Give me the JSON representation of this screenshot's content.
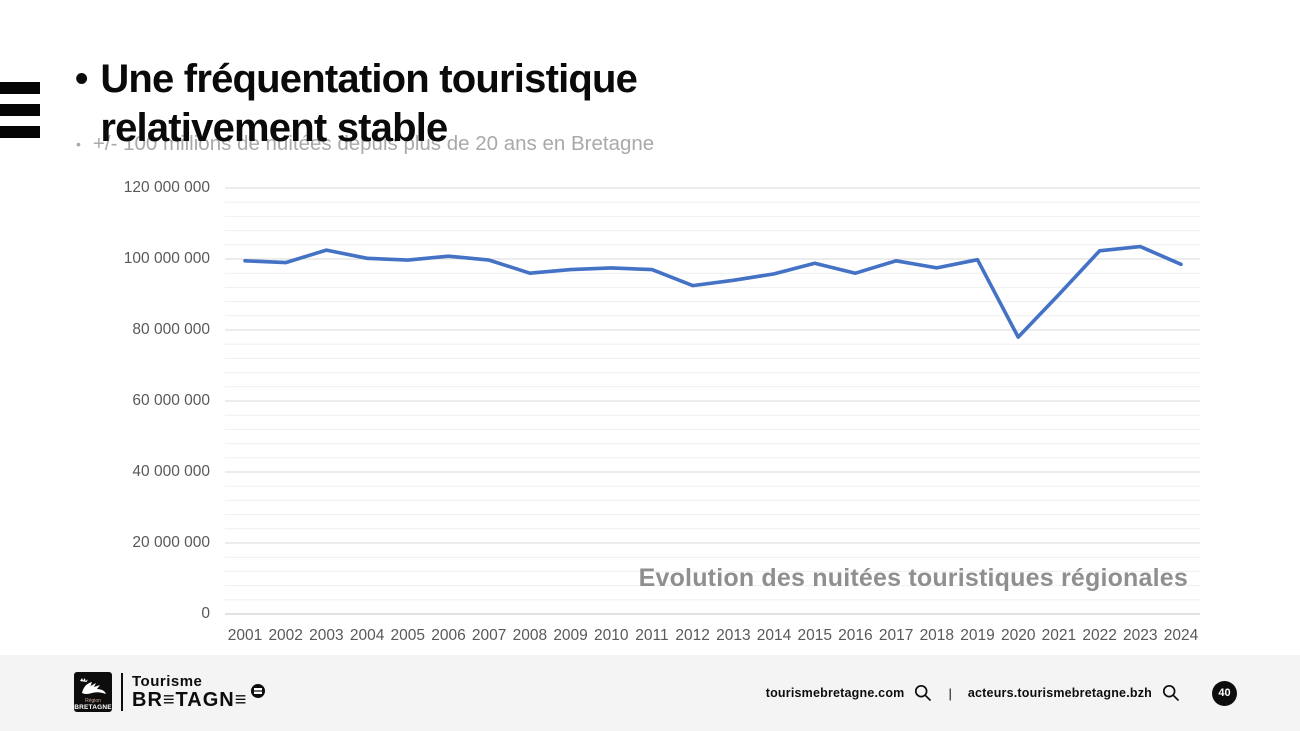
{
  "header": {
    "bullet": "•",
    "title": "Une fréquentation touristique relativement stable",
    "subtitle_bullet": "•",
    "subtitle": "+/- 100 millions de nuitées depuis plus de 20 ans en Bretagne"
  },
  "chart_data": {
    "type": "line",
    "title": "Evolution des nuitées touristiques régionales",
    "title_position": "bottom-right-inside",
    "categories": [
      "2001",
      "2002",
      "2003",
      "2004",
      "2005",
      "2006",
      "2007",
      "2008",
      "2009",
      "2010",
      "2011",
      "2012",
      "2013",
      "2014",
      "2015",
      "2016",
      "2017",
      "2018",
      "2019",
      "2020",
      "2021",
      "2022",
      "2023",
      "2024"
    ],
    "values": [
      99500000,
      99000000,
      102500000,
      100200000,
      99700000,
      100800000,
      99700000,
      96000000,
      97000000,
      97500000,
      97000000,
      92500000,
      94000000,
      95800000,
      98800000,
      96000000,
      99500000,
      97500000,
      99800000,
      78000000,
      90000000,
      102300000,
      103500000,
      98500000
    ],
    "xlabel": "",
    "ylabel": "",
    "ylim": [
      0,
      120000000
    ],
    "y_ticks": [
      {
        "value": 0,
        "label": "0"
      },
      {
        "value": 20000000,
        "label": "20 000 000"
      },
      {
        "value": 40000000,
        "label": "40 000 000"
      },
      {
        "value": 60000000,
        "label": "60 000 000"
      },
      {
        "value": 80000000,
        "label": "80 000 000"
      },
      {
        "value": 100000000,
        "label": "100 000 000"
      },
      {
        "value": 120000000,
        "label": "120 000 000"
      }
    ],
    "minor_grid_step": 4000000,
    "grid": "major and minor horizontal gridlines",
    "legend": "none",
    "line_color": "#4472C4",
    "major_grid_color": "#d9d9d9",
    "minor_grid_color": "#efefef",
    "tick_label_color": "#595959"
  },
  "footer": {
    "region_logo": {
      "line1": "Région",
      "line2": "BRETAGNE"
    },
    "brand": {
      "line1": "Tourisme",
      "line2": "BR≡TAGN≡"
    },
    "site1": "tourismebretagne.com",
    "separator": "|",
    "site2": "acteurs.tourismebretagne.bzh",
    "page_number": "40"
  }
}
